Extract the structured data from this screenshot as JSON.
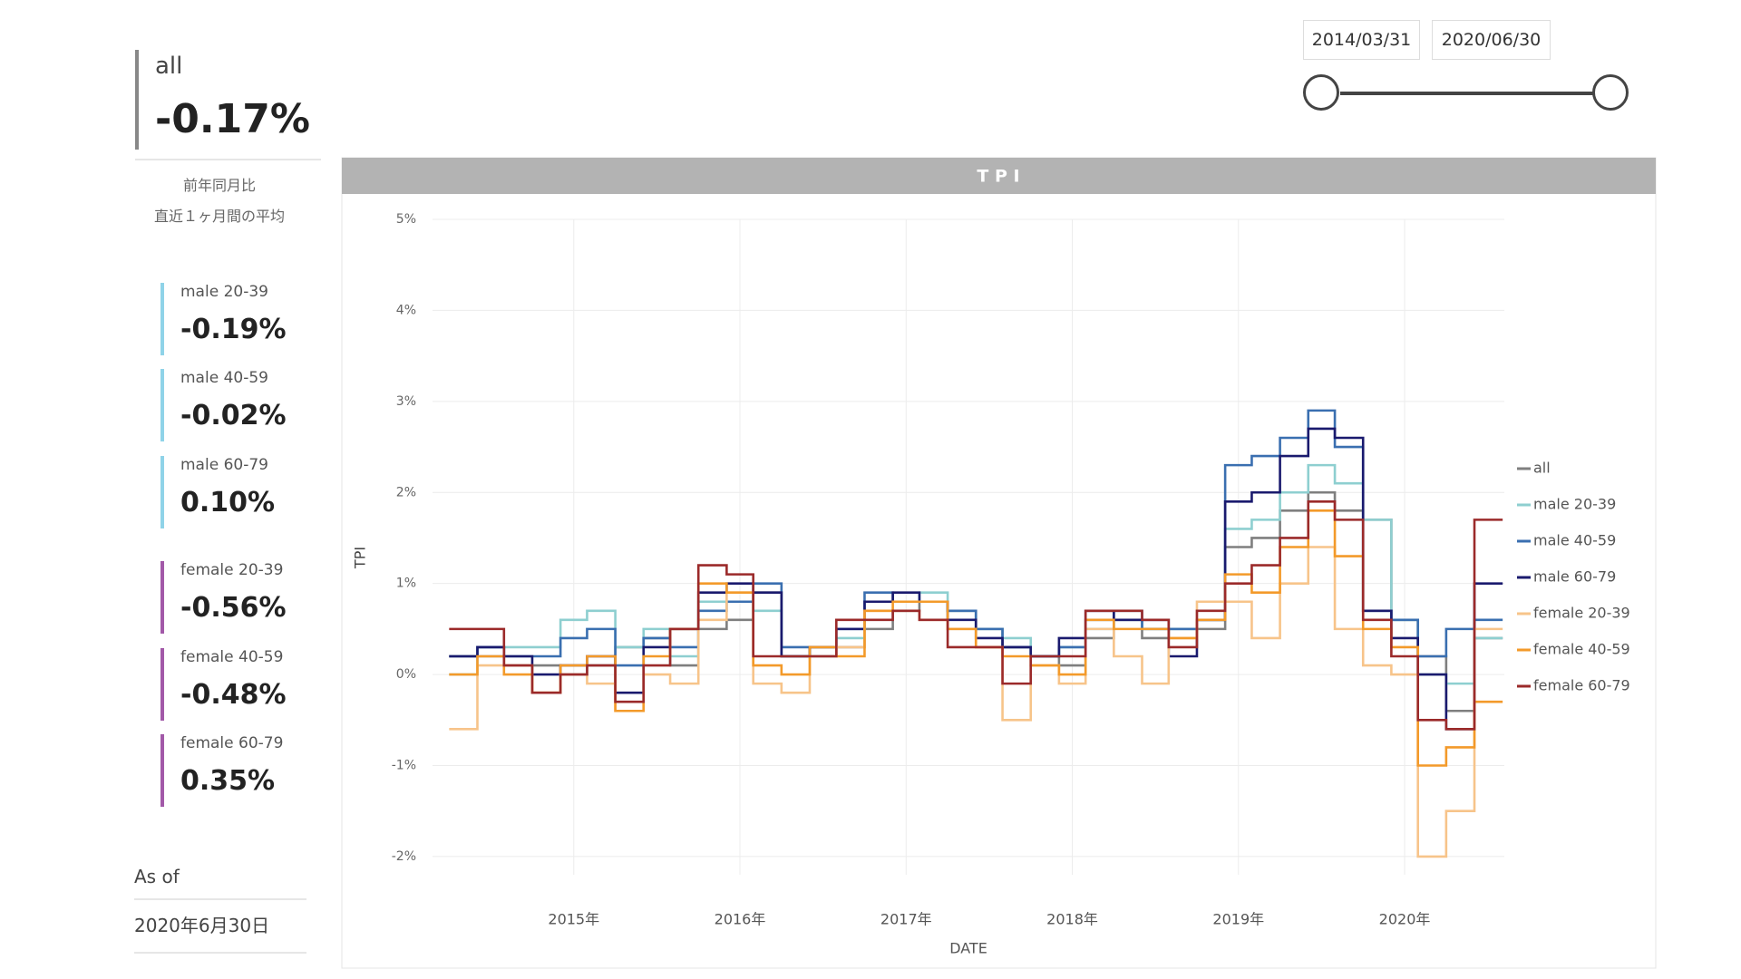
{
  "kpi": {
    "label": "all",
    "value": "-0.17%",
    "notes": [
      "前年同月比",
      "直近１ヶ月間の平均"
    ]
  },
  "segments": [
    {
      "label": "male 20-39",
      "value": "-0.19%"
    },
    {
      "label": "male 40-59",
      "value": "-0.02%"
    },
    {
      "label": "male 60-79",
      "value": "0.10%"
    },
    {
      "label": "female 20-39",
      "value": "-0.56%"
    },
    {
      "label": "female 40-59",
      "value": "-0.48%"
    },
    {
      "label": "female 60-79",
      "value": "0.35%"
    }
  ],
  "as_of": {
    "label": "As of",
    "date": "2020年6月30日"
  },
  "date_range": {
    "start": "2014/03/31",
    "end": "2020/06/30"
  },
  "chart_data": {
    "type": "line",
    "step": true,
    "title": "T P I",
    "y_label": "TPI",
    "x_label": "DATE",
    "x": [
      2014.25,
      2014.42,
      2014.58,
      2014.75,
      2014.92,
      2015.08,
      2015.25,
      2015.42,
      2015.58,
      2015.75,
      2015.92,
      2016.08,
      2016.25,
      2016.42,
      2016.58,
      2016.75,
      2016.92,
      2017.08,
      2017.25,
      2017.42,
      2017.58,
      2017.75,
      2017.92,
      2018.08,
      2018.25,
      2018.42,
      2018.58,
      2018.75,
      2018.92,
      2019.08,
      2019.25,
      2019.42,
      2019.58,
      2019.75,
      2019.92,
      2020.08,
      2020.25,
      2020.42
    ],
    "series": [
      {
        "name": "all",
        "color": "#7f7f7f",
        "values": [
          0.2,
          0.2,
          0.1,
          0.1,
          0.0,
          0.1,
          0.3,
          0.4,
          0.1,
          0.5,
          0.6,
          0.9,
          0.2,
          0.2,
          0.3,
          0.5,
          0.7,
          0.8,
          0.7,
          0.5,
          0.3,
          0.2,
          0.1,
          0.4,
          0.6,
          0.4,
          0.5,
          0.5,
          1.4,
          1.5,
          1.8,
          2.0,
          1.8,
          1.7,
          0.6,
          0.2,
          -0.4,
          0.4
        ]
      },
      {
        "name": "male 20-39",
        "color": "#8ecfd0",
        "values": [
          0.0,
          0.3,
          0.3,
          0.3,
          0.6,
          0.7,
          0.3,
          0.5,
          0.2,
          0.8,
          0.8,
          0.7,
          0.2,
          0.3,
          0.4,
          0.8,
          0.8,
          0.9,
          0.7,
          0.5,
          0.4,
          0.2,
          0.3,
          0.5,
          0.6,
          0.5,
          0.5,
          0.6,
          1.6,
          1.7,
          2.0,
          2.3,
          2.1,
          1.7,
          0.6,
          0.0,
          -0.1,
          0.4
        ]
      },
      {
        "name": "male 40-59",
        "color": "#3a6fb0",
        "values": [
          0.2,
          0.3,
          0.2,
          0.2,
          0.4,
          0.5,
          0.1,
          0.4,
          0.3,
          0.7,
          0.8,
          1.0,
          0.3,
          0.2,
          0.5,
          0.9,
          0.8,
          0.8,
          0.7,
          0.5,
          0.3,
          0.2,
          0.3,
          0.6,
          0.7,
          0.5,
          0.5,
          0.6,
          2.3,
          2.4,
          2.6,
          2.9,
          2.5,
          0.7,
          0.6,
          0.2,
          0.5,
          0.6
        ]
      },
      {
        "name": "male 60-79",
        "color": "#1a1a6e",
        "values": [
          0.2,
          0.3,
          0.2,
          0.0,
          0.1,
          0.2,
          -0.2,
          0.3,
          0.5,
          0.9,
          1.0,
          0.9,
          0.2,
          0.3,
          0.5,
          0.8,
          0.9,
          0.8,
          0.6,
          0.4,
          0.3,
          0.2,
          0.4,
          0.7,
          0.6,
          0.6,
          0.2,
          0.6,
          1.9,
          2.0,
          2.4,
          2.7,
          2.6,
          0.7,
          0.4,
          0.0,
          -0.6,
          1.0
        ]
      },
      {
        "name": "female 20-39",
        "color": "#f7c48a",
        "values": [
          -0.6,
          0.1,
          0.1,
          -0.2,
          0.0,
          -0.1,
          -0.4,
          0.0,
          -0.1,
          0.6,
          0.9,
          -0.1,
          -0.2,
          0.2,
          0.3,
          0.7,
          0.7,
          0.6,
          0.5,
          0.3,
          -0.5,
          0.1,
          -0.1,
          0.5,
          0.2,
          -0.1,
          0.4,
          0.8,
          0.8,
          0.4,
          1.0,
          1.4,
          0.5,
          0.1,
          0.0,
          -2.0,
          -1.5,
          0.5
        ]
      },
      {
        "name": "female 40-59",
        "color": "#f39a2a",
        "values": [
          0.0,
          0.2,
          0.0,
          -0.2,
          0.1,
          0.2,
          -0.4,
          0.2,
          0.5,
          1.0,
          0.9,
          0.1,
          0.0,
          0.3,
          0.2,
          0.7,
          0.8,
          0.8,
          0.5,
          0.3,
          0.2,
          0.1,
          0.0,
          0.6,
          0.5,
          0.5,
          0.4,
          0.6,
          1.1,
          0.9,
          1.4,
          1.8,
          1.3,
          0.5,
          0.3,
          -1.0,
          -0.8,
          -0.3
        ]
      },
      {
        "name": "female 60-79",
        "color": "#9b2a2a",
        "values": [
          0.5,
          0.5,
          0.1,
          -0.2,
          0.0,
          0.1,
          -0.3,
          0.1,
          0.5,
          1.2,
          1.1,
          0.2,
          0.2,
          0.2,
          0.6,
          0.6,
          0.7,
          0.6,
          0.3,
          0.3,
          -0.1,
          0.2,
          0.2,
          0.7,
          0.7,
          0.6,
          0.3,
          0.7,
          1.0,
          1.2,
          1.5,
          1.9,
          1.7,
          0.6,
          0.2,
          -0.5,
          -0.6,
          1.7
        ]
      }
    ],
    "xlim": [
      2014.15,
      2020.6
    ],
    "xticks": [
      {
        "value": 2015,
        "label": "2015年"
      },
      {
        "value": 2016,
        "label": "2016年"
      },
      {
        "value": 2017,
        "label": "2017年"
      },
      {
        "value": 2018,
        "label": "2018年"
      },
      {
        "value": 2019,
        "label": "2019年"
      },
      {
        "value": 2020,
        "label": "2020年"
      }
    ],
    "ylim": [
      -2.2,
      5
    ],
    "yticks": [
      {
        "value": -2,
        "label": "-2%"
      },
      {
        "value": -1,
        "label": "-1%"
      },
      {
        "value": 0,
        "label": "0%"
      },
      {
        "value": 1,
        "label": "1%"
      },
      {
        "value": 2,
        "label": "2%"
      },
      {
        "value": 3,
        "label": "3%"
      },
      {
        "value": 4,
        "label": "4%"
      },
      {
        "value": 5,
        "label": "5%"
      }
    ],
    "grid": true
  }
}
